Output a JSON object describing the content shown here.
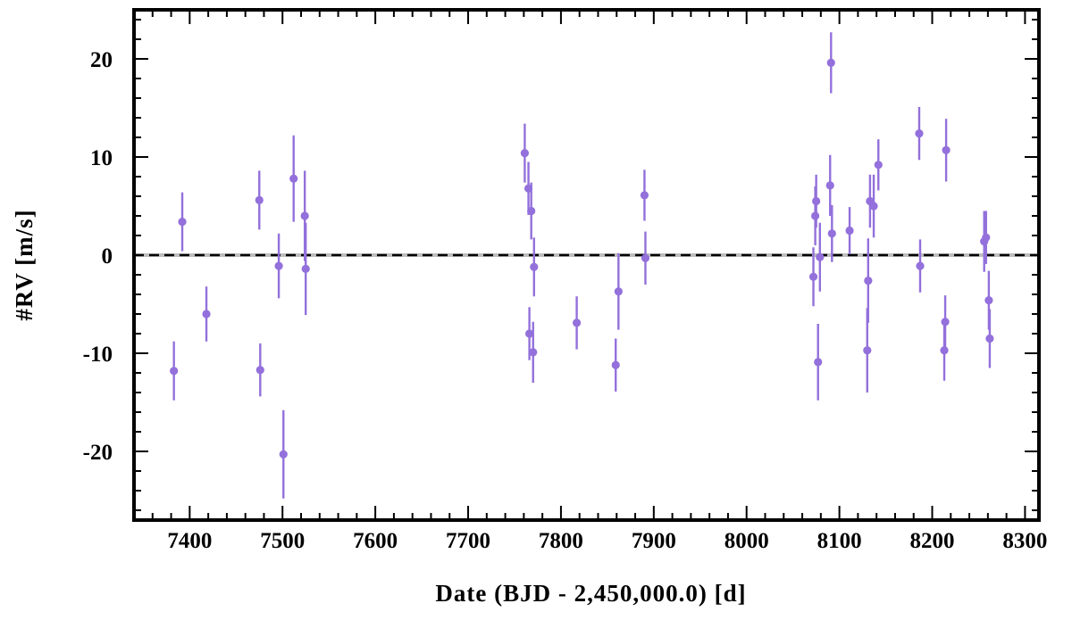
{
  "chart_data": {
    "type": "scatter",
    "xlabel": "Date (BJD - 2,450,000.0) [d]",
    "ylabel": "#RV [m/s]",
    "xlim": [
      7340,
      8315
    ],
    "ylim": [
      -27,
      25
    ],
    "x_ticks": [
      7400,
      7500,
      7600,
      7700,
      7800,
      7900,
      8000,
      8100,
      8200,
      8300
    ],
    "x_tick_labels": [
      "7400",
      "7500",
      "7600",
      "7700",
      "7800",
      "7900",
      "8000",
      "8100",
      "8200",
      "8300"
    ],
    "y_ticks": [
      -20,
      -10,
      0,
      10,
      20
    ],
    "y_tick_labels": [
      "-20",
      "-10",
      "0",
      "10",
      "20"
    ],
    "grid": false,
    "reference_line": 0,
    "marker_color": "#9370db",
    "series": [
      {
        "points": [
          {
            "x": 7383,
            "y": -11.8,
            "err": 3.0
          },
          {
            "x": 7392,
            "y": 3.4,
            "err": 3.0
          },
          {
            "x": 7418,
            "y": -6.0,
            "err": 2.8
          },
          {
            "x": 7475,
            "y": 5.6,
            "err": 3.0
          },
          {
            "x": 7476,
            "y": -11.7,
            "err": 2.7
          },
          {
            "x": 7496,
            "y": -1.1,
            "err": 3.3
          },
          {
            "x": 7501,
            "y": -20.3,
            "err": 4.5
          },
          {
            "x": 7512,
            "y": 7.8,
            "err": 4.4
          },
          {
            "x": 7524,
            "y": 4.0,
            "err": 4.6
          },
          {
            "x": 7525,
            "y": -1.4,
            "err": 4.7
          },
          {
            "x": 7761,
            "y": 10.4,
            "err": 3.0
          },
          {
            "x": 7765,
            "y": 6.8,
            "err": 2.7
          },
          {
            "x": 7766,
            "y": -8.0,
            "err": 2.7
          },
          {
            "x": 7768,
            "y": 4.5,
            "err": 2.9
          },
          {
            "x": 7770,
            "y": -9.9,
            "err": 3.1
          },
          {
            "x": 7771,
            "y": -1.2,
            "err": 3.0
          },
          {
            "x": 7817,
            "y": -6.9,
            "err": 2.7
          },
          {
            "x": 7859,
            "y": -11.2,
            "err": 2.7
          },
          {
            "x": 7862,
            "y": -3.7,
            "err": 3.9
          },
          {
            "x": 7890,
            "y": 6.1,
            "err": 2.6
          },
          {
            "x": 7891,
            "y": -0.3,
            "err": 2.7
          },
          {
            "x": 8072,
            "y": -2.2,
            "err": 3.0
          },
          {
            "x": 8074,
            "y": 4.0,
            "err": 3.0
          },
          {
            "x": 8075,
            "y": 5.5,
            "err": 2.7
          },
          {
            "x": 8077,
            "y": -10.9,
            "err": 3.9
          },
          {
            "x": 8079,
            "y": -0.2,
            "err": 3.5
          },
          {
            "x": 8090,
            "y": 7.1,
            "err": 3.1
          },
          {
            "x": 8091,
            "y": 19.6,
            "err": 3.1
          },
          {
            "x": 8092,
            "y": 2.2,
            "err": 2.9
          },
          {
            "x": 8111,
            "y": 2.5,
            "err": 2.4
          },
          {
            "x": 8130,
            "y": -9.7,
            "err": 4.3
          },
          {
            "x": 8131,
            "y": -2.6,
            "err": 4.3
          },
          {
            "x": 8133,
            "y": 5.5,
            "err": 2.7
          },
          {
            "x": 8137,
            "y": 5.0,
            "err": 3.2
          },
          {
            "x": 8142,
            "y": 9.2,
            "err": 2.6
          },
          {
            "x": 8186,
            "y": 12.4,
            "err": 2.7
          },
          {
            "x": 8187,
            "y": -1.1,
            "err": 2.7
          },
          {
            "x": 8213,
            "y": -9.7,
            "err": 3.1
          },
          {
            "x": 8214,
            "y": -6.8,
            "err": 2.7
          },
          {
            "x": 8215,
            "y": 10.7,
            "err": 3.2
          },
          {
            "x": 8256,
            "y": 1.4,
            "err": 3.1
          },
          {
            "x": 8258,
            "y": 1.8,
            "err": 2.7
          },
          {
            "x": 8261,
            "y": -4.6,
            "err": 3.0
          },
          {
            "x": 8262,
            "y": -8.5,
            "err": 3.0
          }
        ]
      }
    ]
  }
}
